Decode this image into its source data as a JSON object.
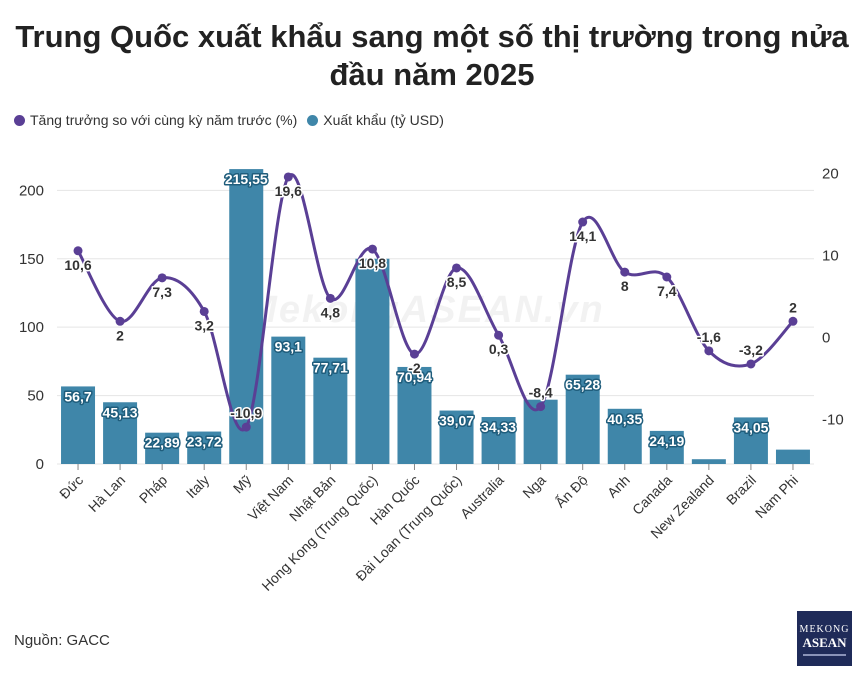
{
  "title": "Trung Quốc xuất khẩu sang một số thị trường trong nửa đầu năm 2025",
  "source": "Nguồn: GACC",
  "watermark": "MekongASEAN.vn",
  "logo": {
    "line1": "MEKONG",
    "line2": "ASEAN"
  },
  "colors": {
    "bar": "#3f86a9",
    "line": "#5a3f95",
    "grid": "#e5e5e5"
  },
  "chart_data": {
    "type": "bar",
    "categories": [
      "Đức",
      "Hà Lan",
      "Pháp",
      "Italy",
      "Mỹ",
      "Việt Nam",
      "Nhật Bản",
      "Hong Kong (Trung Quốc)",
      "Hàn Quốc",
      "Đài Loan (Trung Quốc)",
      "Australia",
      "Nga",
      "Ấn Độ",
      "Anh",
      "Canada",
      "New Zealand",
      "Brazil",
      "Nam Phi"
    ],
    "series": [
      {
        "name": "Xuất khẩu (tỷ USD)",
        "type": "bar",
        "axis": "left",
        "values": [
          56.7,
          45.13,
          22.89,
          23.72,
          215.55,
          93.1,
          77.71,
          150,
          70.94,
          39.07,
          34.33,
          47,
          65.28,
          40.35,
          24.19,
          3.5,
          34.05,
          10.5
        ],
        "labels": [
          "56,7",
          "45,13",
          "22,89",
          "23,72",
          "215,55",
          "93,1",
          "77,71",
          "",
          "70,94",
          "39,07",
          "34,33",
          "",
          "65,28",
          "40,35",
          "24,19",
          "",
          "34,05",
          ""
        ]
      },
      {
        "name": "Tăng trưởng so với cùng kỳ năm trước (%)",
        "type": "line",
        "axis": "right",
        "values": [
          10.6,
          2,
          7.3,
          3.2,
          -10.9,
          19.6,
          4.8,
          10.8,
          -2,
          8.5,
          0.3,
          -8.4,
          14.1,
          8,
          7.4,
          -1.6,
          -3.2,
          2
        ],
        "labels": [
          "10,6",
          "2",
          "7,3",
          "3,2",
          "-10,9",
          "19,6",
          "4,8",
          "10,8",
          "-2",
          "8,5",
          "0,3",
          "-8,4",
          "14,1",
          "8",
          "7,4",
          "-1,6",
          "-3,2",
          "2"
        ]
      }
    ],
    "y_left": {
      "min": 0,
      "max": 220,
      "ticks": [
        0,
        50,
        100,
        150,
        200
      ]
    },
    "y_right": {
      "min": -15.4,
      "max": 21.3,
      "ticks": [
        -10,
        0,
        10,
        20
      ]
    },
    "grid": true,
    "legend_position": "top-left"
  }
}
